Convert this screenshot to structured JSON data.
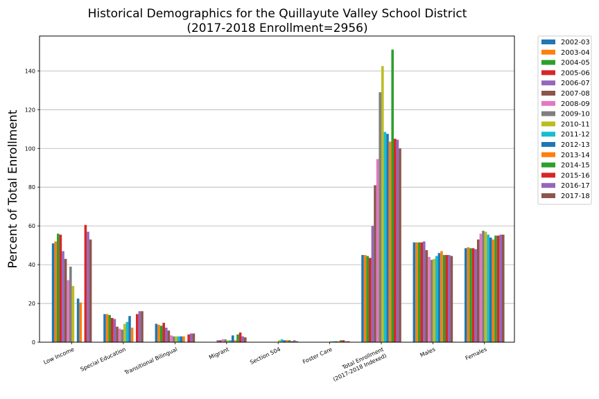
{
  "chart_data": {
    "type": "bar",
    "title_line1": "Historical Demographics for the Quillayute Valley School District",
    "title_line2": "(2017-2018 Enrollment=2956)",
    "xlabel": "",
    "ylabel": "Percent of Total Enrollment",
    "ylim": [
      0,
      158
    ],
    "yticks": [
      0,
      20,
      40,
      60,
      80,
      100,
      120,
      140
    ],
    "grid": "horizontal",
    "legend_placement": "outside-right",
    "categories": [
      "Low Income",
      "Special Education",
      "Transitional Bilingual",
      "Migrant",
      "Section 504",
      "Foster Care",
      "Total Enrollment\n(2017-2018 Indexed)",
      "Males",
      "Females"
    ],
    "colors": [
      "#1f77b4",
      "#ff7f0e",
      "#2ca02c",
      "#d62728",
      "#9467bd",
      "#8c564b",
      "#e377c2",
      "#7f7f7f",
      "#bcbd22",
      "#17becf",
      "#1f77b4",
      "#ff7f0e",
      "#2ca02c",
      "#d62728",
      "#9467bd",
      "#8c564b"
    ],
    "series": [
      {
        "name": "2002-03",
        "values": [
          51,
          14.5,
          9.5,
          0,
          0,
          0,
          45,
          51.5,
          48.5
        ]
      },
      {
        "name": "2003-04",
        "values": [
          52,
          14.5,
          9,
          0,
          0,
          0,
          45,
          51.5,
          49
        ]
      },
      {
        "name": "2004-05",
        "values": [
          56,
          14,
          8.5,
          0,
          0,
          0,
          44.5,
          51.5,
          48.5
        ]
      },
      {
        "name": "2005-06",
        "values": [
          55.5,
          12.5,
          10,
          0,
          0,
          0,
          43.5,
          51.5,
          48.5
        ]
      },
      {
        "name": "2006-07",
        "values": [
          47,
          12,
          7.5,
          0,
          0,
          0,
          60,
          52,
          48
        ]
      },
      {
        "name": "2007-08",
        "values": [
          43,
          8,
          6,
          0,
          0,
          0,
          81,
          47.5,
          53
        ]
      },
      {
        "name": "2008-09",
        "values": [
          32,
          7,
          3.5,
          0,
          0,
          0,
          94.5,
          44,
          56
        ]
      },
      {
        "name": "2009-10",
        "values": [
          39,
          6.5,
          3,
          0,
          0,
          0,
          129,
          42.5,
          57.5
        ]
      },
      {
        "name": "2010-11",
        "values": [
          29,
          9.5,
          3,
          0,
          0,
          0,
          142.5,
          43,
          57
        ]
      },
      {
        "name": "2011-12",
        "values": [
          0,
          10.5,
          3,
          0,
          0,
          0,
          108.5,
          44.5,
          55.5
        ]
      },
      {
        "name": "2012-13",
        "values": [
          22.5,
          13.5,
          3,
          3.5,
          1,
          0,
          107.5,
          46,
          54
        ]
      },
      {
        "name": "2013-14",
        "values": [
          20.5,
          7.5,
          3,
          0,
          1,
          0.5,
          103.5,
          47,
          53
        ]
      },
      {
        "name": "2014-15",
        "values": [
          0,
          0,
          0,
          4,
          1,
          0,
          151,
          45,
          55
        ]
      },
      {
        "name": "2015-16",
        "values": [
          60.5,
          14.5,
          4,
          5,
          0.5,
          0,
          105,
          45,
          55
        ]
      },
      {
        "name": "2016-17",
        "values": [
          57,
          16,
          4.5,
          3,
          1,
          0.5,
          104.5,
          45,
          55.5
        ]
      },
      {
        "name": "2017-18",
        "values": [
          53,
          16,
          4.5,
          2.5,
          0.5,
          0.5,
          100,
          44.5,
          55.5
        ]
      }
    ],
    "extra_small_values_note": "",
    "migrant_small": [
      1,
      1,
      1.5,
      1.5,
      1,
      1,
      1,
      1
    ],
    "section504_small": [
      1,
      1.5,
      0.5,
      2,
      0.5,
      1,
      1,
      3.5
    ],
    "foster_small": [
      0.5,
      0.5,
      0.5,
      0.5,
      1,
      1,
      1,
      1
    ]
  }
}
